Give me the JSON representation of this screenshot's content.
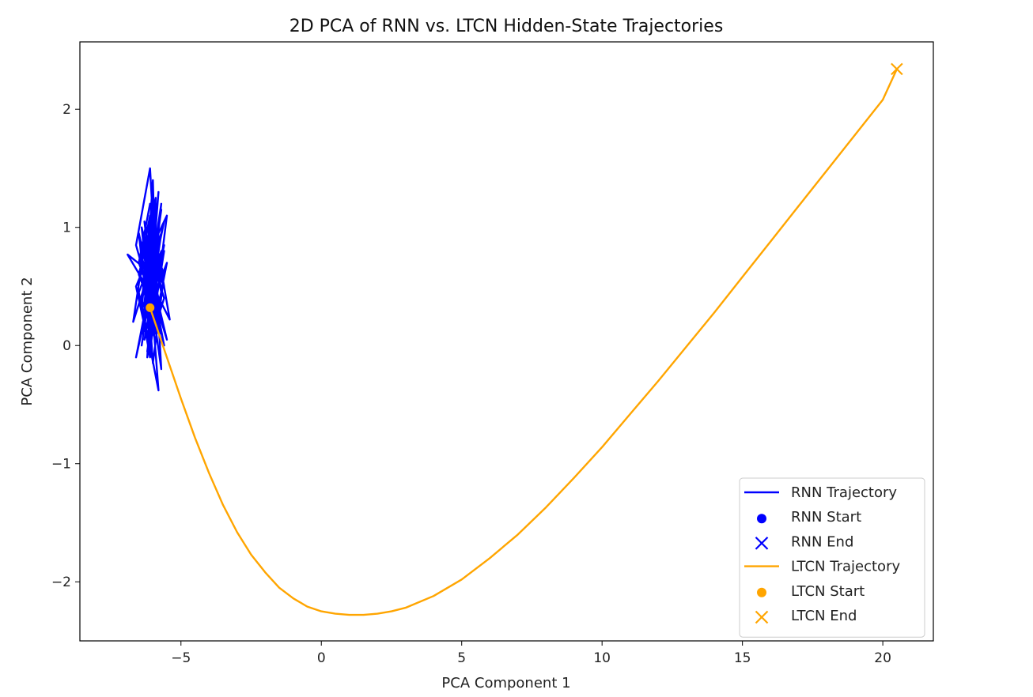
{
  "chart_data": {
    "type": "line",
    "title": "2D PCA of RNN vs. LTCN Hidden-State Trajectories",
    "xlabel": "PCA Component 1",
    "ylabel": "PCA Component 2",
    "xlim": [
      -8.6,
      21.8
    ],
    "ylim": [
      -2.5,
      2.57
    ],
    "xticks": [
      -5,
      0,
      5,
      10,
      15,
      20
    ],
    "xtick_labels": [
      "−5",
      "0",
      "5",
      "10",
      "15",
      "20"
    ],
    "yticks": [
      -2,
      -1,
      0,
      1,
      2
    ],
    "ytick_labels": [
      "−2",
      "−1",
      "0",
      "1",
      "2"
    ],
    "grid": false,
    "legend_position": "lower-right",
    "series": [
      {
        "name": "RNN Trajectory",
        "kind": "line",
        "color": "#0000ff",
        "x": [
          -6.0,
          -6.3,
          -5.7,
          -6.5,
          -5.9,
          -6.2,
          -5.6,
          -6.4,
          -6.0,
          -5.8,
          -6.3,
          -5.5,
          -6.1,
          -6.6,
          -5.9,
          -6.2,
          -5.7,
          -6.4,
          -6.0,
          -5.6,
          -6.3,
          -5.8,
          -6.1,
          -6.5,
          -5.7,
          -6.2,
          -5.9,
          -6.0,
          -5.5,
          -6.4,
          -6.1,
          -5.8,
          -6.3,
          -6.0,
          -5.6,
          -6.2,
          -6.7,
          -5.9,
          -6.1,
          -5.7,
          -6.4,
          -6.0,
          -5.8,
          -6.2,
          -6.5,
          -5.6,
          -6.0,
          -6.3,
          -5.9,
          -6.6,
          -6.1,
          -5.7,
          -6.2,
          -5.8,
          -6.4,
          -6.0,
          -5.5,
          -6.3,
          -6.1,
          -5.7,
          -6.0,
          -6.3,
          -5.9,
          -6.6,
          -6.0,
          -5.8,
          -6.2,
          -5.6,
          -6.4,
          -6.1,
          -5.9,
          -6.3,
          -5.7,
          -6.2,
          -6.0,
          -5.8,
          -6.5,
          -6.1,
          -5.6,
          -6.3,
          -5.9,
          -6.2,
          -6.0,
          -5.4,
          -6.1,
          -5.8,
          -6.4,
          -6.2,
          -5.9,
          -6.1,
          -6.9,
          -6.0,
          -5.7,
          -6.3,
          -6.0,
          -5.9,
          -6.2,
          -5.6,
          -6.0,
          -6.1
        ],
        "y": [
          0.3,
          0.9,
          0.1,
          0.6,
          1.2,
          -0.1,
          0.8,
          0.4,
          1.0,
          0.2,
          0.7,
          1.1,
          -0.05,
          0.5,
          0.9,
          0.3,
          1.15,
          0.0,
          0.65,
          1.05,
          0.25,
          0.85,
          -0.1,
          0.45,
          0.95,
          0.15,
          1.25,
          0.55,
          0.05,
          0.75,
          1.1,
          0.35,
          0.9,
          -0.15,
          0.6,
          1.0,
          0.2,
          0.8,
          0.4,
          1.2,
          0.1,
          0.7,
          1.3,
          0.3,
          0.95,
          0.0,
          0.5,
          1.05,
          0.25,
          0.85,
          1.5,
          -0.2,
          0.65,
          0.4,
          1.0,
          0.1,
          0.7,
          0.2,
          0.9,
          0.45,
          1.15,
          0.35,
          0.75,
          -0.1,
          0.55,
          0.95,
          0.15,
          0.85,
          0.3,
          1.1,
          0.6,
          0.05,
          0.8,
          0.4,
          1.0,
          0.25,
          0.7,
          1.2,
          0.5,
          0.9,
          0.1,
          0.65,
          1.05,
          0.22,
          0.55,
          -0.38,
          0.35,
          0.85,
          1.25,
          0.45,
          0.77,
          0.6,
          0.95,
          0.3,
          1.4,
          0.5,
          -0.05,
          0.4,
          0.7,
          0.55
        ]
      },
      {
        "name": "RNN Start",
        "kind": "marker-circle",
        "color": "#0000ff",
        "x": [
          -6.0
        ],
        "y": [
          0.3
        ]
      },
      {
        "name": "RNN End",
        "kind": "marker-x",
        "color": "#0000ff",
        "x": [
          -6.1
        ],
        "y": [
          0.55
        ]
      },
      {
        "name": "LTCN Trajectory",
        "kind": "line",
        "color": "#ffa500",
        "x": [
          -6.1,
          -5.5,
          -5.0,
          -4.5,
          -4.0,
          -3.5,
          -3.0,
          -2.5,
          -2.0,
          -1.5,
          -1.0,
          -0.5,
          0.0,
          0.5,
          1.0,
          1.5,
          2.0,
          2.5,
          3.0,
          4.0,
          5.0,
          6.0,
          7.0,
          8.0,
          9.0,
          10.0,
          11.0,
          12.0,
          13.0,
          14.0,
          15.0,
          16.0,
          17.0,
          18.0,
          19.0,
          20.0,
          20.5
        ],
        "y": [
          0.32,
          -0.1,
          -0.45,
          -0.78,
          -1.08,
          -1.35,
          -1.58,
          -1.77,
          -1.92,
          -2.05,
          -2.14,
          -2.21,
          -2.25,
          -2.27,
          -2.28,
          -2.28,
          -2.27,
          -2.25,
          -2.22,
          -2.12,
          -1.98,
          -1.8,
          -1.6,
          -1.37,
          -1.12,
          -0.86,
          -0.58,
          -0.3,
          -0.01,
          0.28,
          0.58,
          0.88,
          1.18,
          1.48,
          1.78,
          2.08,
          2.34
        ]
      },
      {
        "name": "LTCN Start",
        "kind": "marker-circle",
        "color": "#ffa500",
        "x": [
          -6.1
        ],
        "y": [
          0.32
        ]
      },
      {
        "name": "LTCN End",
        "kind": "marker-x",
        "color": "#ffa500",
        "x": [
          20.5
        ],
        "y": [
          2.34
        ]
      }
    ]
  }
}
